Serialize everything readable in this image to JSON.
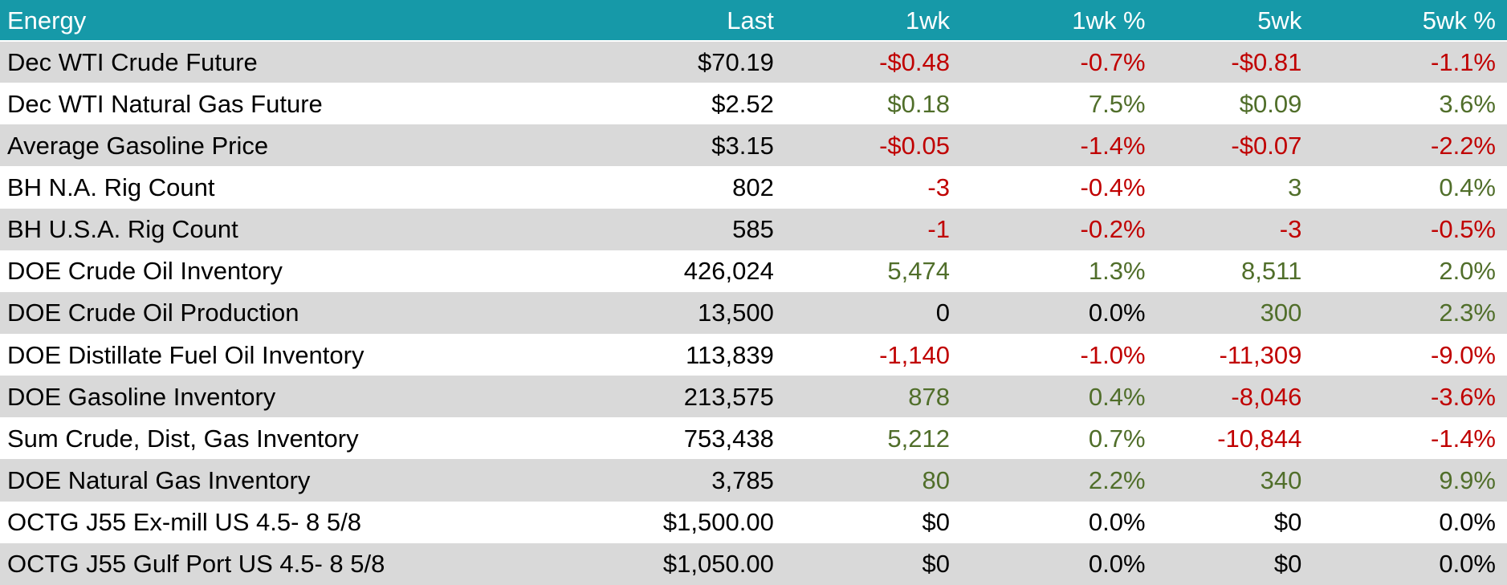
{
  "colors": {
    "header_bg": "#1699A8",
    "header_text": "#FFFFFF",
    "row_alt_bg": "#D9D9D9",
    "row_bg": "#FFFFFF",
    "negative": "#C00000",
    "positive": "#506E2A",
    "neutral": "#000000"
  },
  "chart_data": {
    "type": "table",
    "title": "Energy",
    "columns": [
      "Energy",
      "Last",
      "1wk",
      "1wk %",
      "5wk",
      "5wk %"
    ],
    "rows": [
      {
        "cells": [
          [
            "Dec WTI Crude Future",
            "neutral"
          ],
          [
            "$70.19",
            "neutral"
          ],
          [
            "-$0.48",
            "negative"
          ],
          [
            "-0.7%",
            "negative"
          ],
          [
            "-$0.81",
            "negative"
          ],
          [
            "-1.1%",
            "negative"
          ]
        ]
      },
      {
        "cells": [
          [
            "Dec WTI Natural Gas Future",
            "neutral"
          ],
          [
            "$2.52",
            "neutral"
          ],
          [
            "$0.18",
            "positive"
          ],
          [
            "7.5%",
            "positive"
          ],
          [
            "$0.09",
            "positive"
          ],
          [
            "3.6%",
            "positive"
          ]
        ]
      },
      {
        "cells": [
          [
            "Average Gasoline Price",
            "neutral"
          ],
          [
            "$3.15",
            "neutral"
          ],
          [
            "-$0.05",
            "negative"
          ],
          [
            "-1.4%",
            "negative"
          ],
          [
            "-$0.07",
            "negative"
          ],
          [
            "-2.2%",
            "negative"
          ]
        ]
      },
      {
        "cells": [
          [
            "BH N.A. Rig Count",
            "neutral"
          ],
          [
            "802",
            "neutral"
          ],
          [
            "-3",
            "negative"
          ],
          [
            "-0.4%",
            "negative"
          ],
          [
            "3",
            "positive"
          ],
          [
            "0.4%",
            "positive"
          ]
        ]
      },
      {
        "cells": [
          [
            "BH U.S.A. Rig Count",
            "neutral"
          ],
          [
            "585",
            "neutral"
          ],
          [
            "-1",
            "negative"
          ],
          [
            "-0.2%",
            "negative"
          ],
          [
            "-3",
            "negative"
          ],
          [
            "-0.5%",
            "negative"
          ]
        ]
      },
      {
        "cells": [
          [
            "DOE Crude Oil Inventory",
            "neutral"
          ],
          [
            "426,024",
            "neutral"
          ],
          [
            "5,474",
            "positive"
          ],
          [
            "1.3%",
            "positive"
          ],
          [
            "8,511",
            "positive"
          ],
          [
            "2.0%",
            "positive"
          ]
        ]
      },
      {
        "cells": [
          [
            "DOE Crude Oil Production",
            "neutral"
          ],
          [
            "13,500",
            "neutral"
          ],
          [
            "0",
            "neutral"
          ],
          [
            "0.0%",
            "neutral"
          ],
          [
            "300",
            "positive"
          ],
          [
            "2.3%",
            "positive"
          ]
        ]
      },
      {
        "cells": [
          [
            "DOE Distillate Fuel Oil Inventory",
            "neutral"
          ],
          [
            "113,839",
            "neutral"
          ],
          [
            "-1,140",
            "negative"
          ],
          [
            "-1.0%",
            "negative"
          ],
          [
            "-11,309",
            "negative"
          ],
          [
            "-9.0%",
            "negative"
          ]
        ]
      },
      {
        "cells": [
          [
            "DOE Gasoline Inventory",
            "neutral"
          ],
          [
            "213,575",
            "neutral"
          ],
          [
            "878",
            "positive"
          ],
          [
            "0.4%",
            "positive"
          ],
          [
            "-8,046",
            "negative"
          ],
          [
            "-3.6%",
            "negative"
          ]
        ]
      },
      {
        "cells": [
          [
            "Sum Crude, Dist, Gas Inventory",
            "neutral"
          ],
          [
            "753,438",
            "neutral"
          ],
          [
            "5,212",
            "positive"
          ],
          [
            "0.7%",
            "positive"
          ],
          [
            "-10,844",
            "negative"
          ],
          [
            "-1.4%",
            "negative"
          ]
        ]
      },
      {
        "cells": [
          [
            "DOE Natural Gas Inventory",
            "neutral"
          ],
          [
            "3,785",
            "neutral"
          ],
          [
            "80",
            "positive"
          ],
          [
            "2.2%",
            "positive"
          ],
          [
            "340",
            "positive"
          ],
          [
            "9.9%",
            "positive"
          ]
        ]
      },
      {
        "cells": [
          [
            "OCTG J55 Ex-mill US 4.5- 8 5/8",
            "neutral"
          ],
          [
            "$1,500.00",
            "neutral"
          ],
          [
            "$0",
            "neutral"
          ],
          [
            "0.0%",
            "neutral"
          ],
          [
            "$0",
            "neutral"
          ],
          [
            "0.0%",
            "neutral"
          ]
        ]
      },
      {
        "cells": [
          [
            "OCTG J55 Gulf Port US 4.5- 8 5/8",
            "neutral"
          ],
          [
            "$1,050.00",
            "neutral"
          ],
          [
            "$0",
            "neutral"
          ],
          [
            "0.0%",
            "neutral"
          ],
          [
            "$0",
            "neutral"
          ],
          [
            "0.0%",
            "neutral"
          ]
        ]
      }
    ]
  }
}
